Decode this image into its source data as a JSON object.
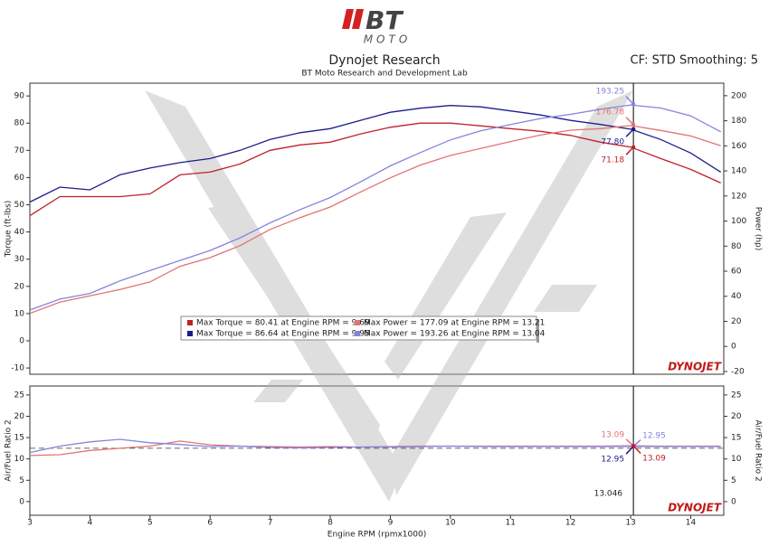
{
  "header": {
    "logo_main": "BT",
    "logo_sub": "MOTO",
    "title": "Dynojet Research",
    "subtitle": "BT Moto Research and Development Lab",
    "settings": "CF: STD Smoothing: 5"
  },
  "chart_data": [
    {
      "type": "line",
      "ylabel": "Torque (ft-lbs)",
      "y2label": "Power (hp)",
      "brand": "DYNOJET",
      "xlim": [
        3,
        14.55
      ],
      "ylim": [
        -12.3,
        94.7
      ],
      "yticks": [
        -10,
        0,
        10,
        20,
        30,
        40,
        50,
        60,
        70,
        80,
        90
      ],
      "y2lim": [
        -22.2,
        210
      ],
      "y2ticks": [
        -20,
        0,
        20,
        40,
        60,
        80,
        100,
        120,
        140,
        160,
        180,
        200
      ],
      "cursor": 13.046,
      "x": [
        3,
        3.5,
        4,
        4.5,
        5,
        5.5,
        6,
        6.5,
        7,
        7.5,
        8,
        8.5,
        9,
        9.5,
        10,
        10.5,
        11,
        11.5,
        12,
        12.5,
        13,
        13.5,
        14,
        14.5
      ],
      "series": [
        {
          "name": "Max Torque = 80.41 at Engine RPM = 9.69",
          "color": "#c0202a",
          "values": [
            46,
            53,
            53,
            53,
            54,
            61,
            62,
            65,
            70,
            72,
            73,
            76,
            78.5,
            80,
            80,
            79,
            78,
            77,
            75.5,
            73,
            71.2,
            67,
            63,
            58
          ]
        },
        {
          "name": "Max Torque = 86.64 at Engine RPM = 9.95",
          "color": "#1c1c8e",
          "values": [
            51,
            56.5,
            55.5,
            61,
            63.5,
            65.5,
            67,
            70,
            74,
            76.5,
            78,
            81,
            84,
            85.5,
            86.5,
            86,
            84.5,
            83,
            81,
            79.5,
            77.8,
            74,
            69,
            62
          ]
        },
        {
          "name": "Max Power = 177.09 at Engine RPM = 13.21",
          "color": "#e47272",
          "axis": "y2",
          "values": [
            26.3,
            35.3,
            40.4,
            45.4,
            51.4,
            63.9,
            70.8,
            80.4,
            93.3,
            102.8,
            111.2,
            123,
            134.5,
            144.7,
            152.3,
            157.9,
            163.4,
            168.6,
            172.5,
            173.7,
            176.2,
            172.3,
            167.9,
            160.1
          ]
        },
        {
          "name": "Max Power = 193.26 at Engine RPM = 13.04",
          "color": "#8484e0",
          "axis": "y2",
          "values": [
            29.1,
            37.7,
            42.3,
            52.3,
            60.5,
            68.6,
            76.5,
            86.6,
            98.6,
            109.2,
            118.8,
            131.2,
            144,
            154.6,
            164.7,
            171.9,
            177,
            181.8,
            185.1,
            189.2,
            192.6,
            190.2,
            183.9,
            171.2
          ]
        }
      ],
      "annotations": [
        {
          "value": 193.25,
          "axis": "y2",
          "color": "#8484e0"
        },
        {
          "value": 176.78,
          "axis": "y2",
          "color": "#e47272"
        },
        {
          "value": {
            "value": 77.8,
            "label": "77.80"
          },
          "color": "#1c1c8e"
        },
        {
          "value": 71.18,
          "color": "#c0202a"
        }
      ]
    },
    {
      "type": "line",
      "ylabel": "Air/Fuel Ratio 2",
      "y2label": "Air/Fuel Ratio 2",
      "brand": "DYNOJET",
      "xlim": [
        3,
        14.55
      ],
      "xticks": [
        3,
        4,
        5,
        6,
        7,
        8,
        9,
        10,
        11,
        12,
        13,
        14
      ],
      "xlabel": "Engine RPM (rpmx1000)",
      "ylim": [
        -3.2,
        27.1
      ],
      "yticks": [
        0,
        5,
        10,
        15,
        20,
        25
      ],
      "y2lim": [
        -3.2,
        27.1
      ],
      "y2ticks": [
        0,
        5,
        10,
        15,
        20,
        25
      ],
      "cursor": 13.046,
      "reference_value": 12.5,
      "x": [
        3,
        3.5,
        4,
        4.5,
        5,
        5.5,
        6,
        6.5,
        7,
        7.5,
        8,
        8.5,
        9,
        9.5,
        10,
        10.5,
        11,
        11.5,
        12,
        12.5,
        13,
        13.5,
        14,
        14.5
      ],
      "series": [
        {
          "color": "#e47272",
          "values": [
            10.8,
            11,
            12,
            12.5,
            13,
            14.2,
            13.3,
            13,
            12.9,
            12.8,
            12.9,
            12.8,
            12.9,
            13,
            13,
            13,
            13,
            13,
            13,
            13,
            13.1,
            13,
            13,
            13
          ]
        },
        {
          "color": "#8484e0",
          "values": [
            11.5,
            13,
            14,
            14.6,
            13.8,
            13.4,
            12.9,
            13,
            12.7,
            12.6,
            12.7,
            12.8,
            12.8,
            12.9,
            13,
            12.9,
            12.9,
            12.9,
            12.9,
            12.9,
            12.95,
            12.9,
            12.9,
            12.9
          ]
        }
      ],
      "annotations": [
        {
          "value": 13.09,
          "color": "#e47272"
        },
        {
          "value": 12.95,
          "color": "#8484e0"
        },
        {
          "value": 12.95,
          "color": "#1c1c8e"
        },
        {
          "value": 13.09,
          "color": "#c0202a"
        }
      ]
    }
  ]
}
